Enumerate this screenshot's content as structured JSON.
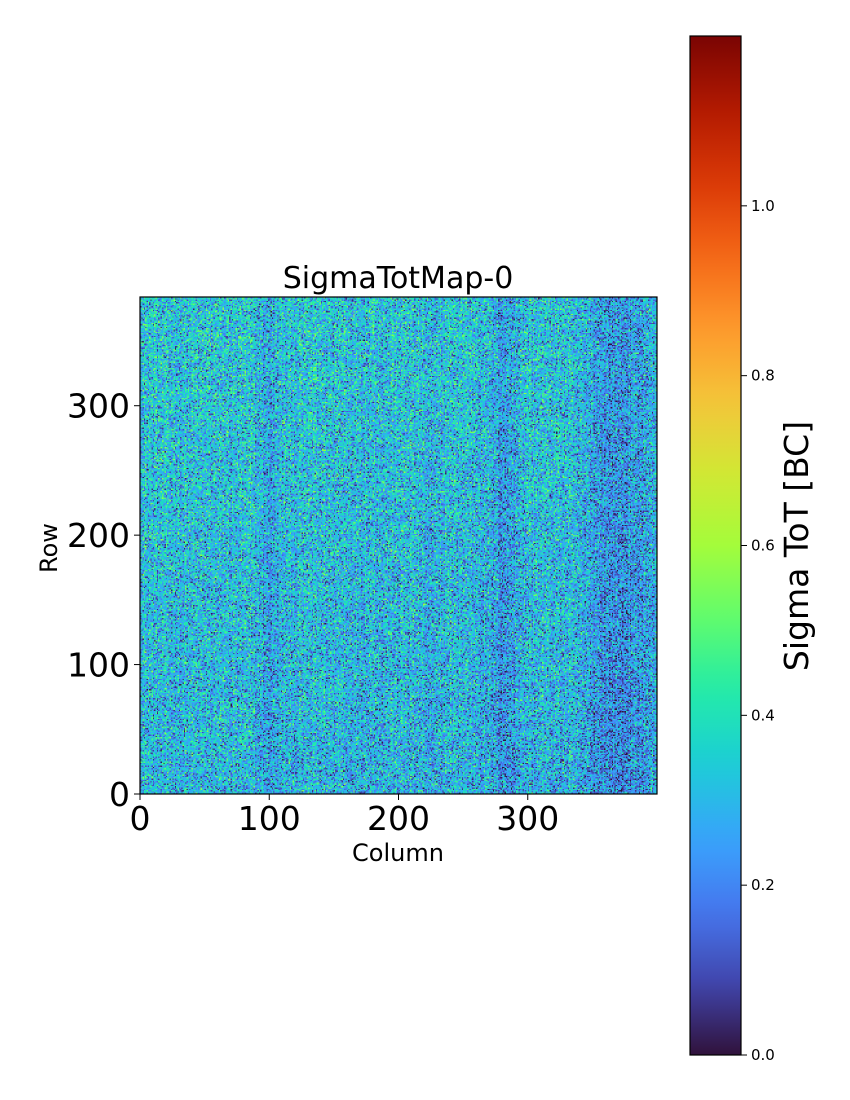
{
  "chart_data": {
    "type": "heatmap",
    "title": "SigmaTotMap-0",
    "xlabel": "Column",
    "ylabel": "Row",
    "xlim": [
      0,
      400
    ],
    "ylim": [
      0,
      384
    ],
    "n_columns": 400,
    "n_rows": 384,
    "x_ticks": [
      0,
      100,
      200,
      300
    ],
    "y_ticks": [
      0,
      100,
      200,
      300
    ],
    "x_tick_labels": [
      "0",
      "100",
      "200",
      "300"
    ],
    "y_tick_labels": [
      "0",
      "100",
      "200",
      "300"
    ],
    "colormap": "turbo",
    "colorbar": {
      "label": "Sigma ToT [BC]",
      "range": [
        0.0,
        1.2
      ],
      "ticks": [
        0.0,
        0.2,
        0.4,
        0.6,
        0.8,
        1.0
      ],
      "tick_labels": [
        "0.0",
        "0.2",
        "0.4",
        "0.6",
        "0.8",
        "1.0"
      ]
    },
    "value_distribution": {
      "typical_range": [
        0.0,
        0.55
      ],
      "mode": 0.3,
      "description_hint": "noisy per-pixel values, mostly blue/cyan, sparse green, darker vertical stripes near columns 100, 280, 370"
    }
  }
}
